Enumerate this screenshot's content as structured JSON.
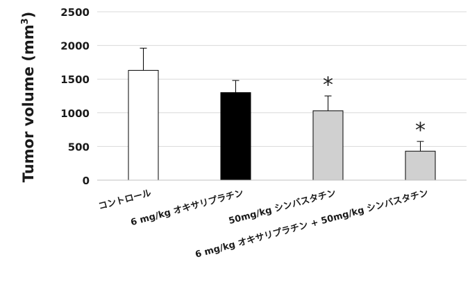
{
  "chart_data": {
    "type": "bar",
    "ylabel": "Tumor volume (mm",
    "ylabel_sup": "3",
    "ylabel_close": ")",
    "ylim": [
      0,
      2500
    ],
    "yticks": [
      0,
      500,
      1000,
      1500,
      2000,
      2500
    ],
    "grid": true,
    "categories": [
      "コントロール",
      "6 mg/kg オキサリプラチン",
      "50mg/kg シンバスタチン",
      "6 mg/kg オキサリプラチン + 50mg/kg シンバスタチン"
    ],
    "values": [
      1630,
      1300,
      1030,
      430
    ],
    "error_plus": [
      330,
      180,
      220,
      145
    ],
    "bar_colors": [
      "#ffffff",
      "#000000",
      "#d0d0d0",
      "#d0d0d0"
    ],
    "significance": [
      "",
      "",
      "*",
      "*"
    ]
  }
}
